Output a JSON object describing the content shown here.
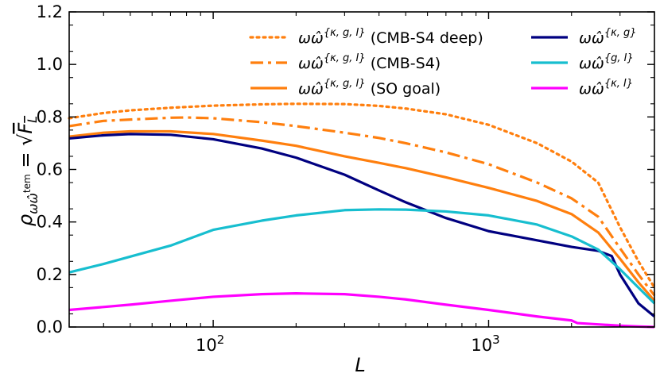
{
  "chart_data": {
    "type": "line",
    "xscale": "log",
    "xlabel": "L",
    "ylabel": "ρ_{ωω̂^tem} = √F_L",
    "xlim": [
      30,
      4000
    ],
    "ylim": [
      0.0,
      1.2
    ],
    "yticks": [
      0.0,
      0.2,
      0.4,
      0.6,
      0.8,
      1.0,
      1.2
    ],
    "ytick_labels": [
      "0.0",
      "0.2",
      "0.4",
      "0.6",
      "0.8",
      "1.0",
      "1.2"
    ],
    "xticks": [
      100,
      1000
    ],
    "xtick_labels": [
      {
        "base": "10",
        "exp": "2"
      },
      {
        "base": "10",
        "exp": "3"
      }
    ],
    "legend": "top-right, two columns",
    "series": [
      {
        "name": "ωω̂^{κ,g,I} (CMB-S4 deep)",
        "legend_main": "ωω̂",
        "legend_sup": "{κ, g, I}",
        "legend_suffix": " (CMB-S4 deep)",
        "color": "#ff7f0e",
        "style": "dotted",
        "x": [
          30,
          40,
          50,
          70,
          100,
          150,
          200,
          300,
          400,
          500,
          700,
          1000,
          1500,
          2000,
          2500,
          3000,
          3500,
          4000
        ],
        "y": [
          0.795,
          0.815,
          0.825,
          0.835,
          0.843,
          0.848,
          0.85,
          0.849,
          0.842,
          0.832,
          0.81,
          0.77,
          0.7,
          0.63,
          0.55,
          0.38,
          0.25,
          0.15
        ]
      },
      {
        "name": "ωω̂^{κ,g,I} (CMB-S4)",
        "legend_main": "ωω̂",
        "legend_sup": "{κ, g, I}",
        "legend_suffix": " (CMB-S4)",
        "color": "#ff7f0e",
        "style": "dashdot",
        "x": [
          30,
          40,
          50,
          70,
          80,
          100,
          150,
          200,
          300,
          400,
          500,
          700,
          1000,
          1500,
          2000,
          2500,
          3000,
          3500,
          4000
        ],
        "y": [
          0.765,
          0.785,
          0.79,
          0.797,
          0.798,
          0.795,
          0.78,
          0.765,
          0.74,
          0.72,
          0.7,
          0.665,
          0.62,
          0.55,
          0.49,
          0.42,
          0.3,
          0.2,
          0.12
        ]
      },
      {
        "name": "ωω̂^{κ,g,I} (SO goal)",
        "legend_main": "ωω̂",
        "legend_sup": "{κ, g, I}",
        "legend_suffix": " (SO goal)",
        "color": "#ff7f0e",
        "style": "solid",
        "x": [
          30,
          40,
          50,
          70,
          100,
          150,
          200,
          300,
          400,
          500,
          700,
          1000,
          1500,
          2000,
          2500,
          3000,
          3500,
          4000
        ],
        "y": [
          0.725,
          0.74,
          0.745,
          0.745,
          0.735,
          0.71,
          0.69,
          0.65,
          0.625,
          0.605,
          0.57,
          0.53,
          0.48,
          0.43,
          0.36,
          0.26,
          0.17,
          0.1
        ]
      },
      {
        "name": "ωω̂^{κ,g}",
        "legend_main": "ωω̂",
        "legend_sup": "{κ, g}",
        "legend_suffix": "",
        "color": "#000080",
        "style": "solid",
        "x": [
          30,
          40,
          50,
          70,
          100,
          150,
          200,
          300,
          400,
          500,
          700,
          1000,
          1500,
          2000,
          2500,
          2800,
          3000,
          3500,
          4000
        ],
        "y": [
          0.718,
          0.73,
          0.735,
          0.732,
          0.715,
          0.68,
          0.645,
          0.58,
          0.52,
          0.475,
          0.415,
          0.365,
          0.33,
          0.305,
          0.29,
          0.27,
          0.2,
          0.09,
          0.04
        ]
      },
      {
        "name": "ωω̂^{g,I}",
        "legend_main": "ωω̂",
        "legend_sup": "{g, I}",
        "legend_suffix": "",
        "color": "#17becf",
        "style": "solid",
        "x": [
          30,
          40,
          50,
          70,
          100,
          150,
          200,
          300,
          400,
          500,
          700,
          1000,
          1500,
          2000,
          2500,
          3000,
          3500,
          4000
        ],
        "y": [
          0.208,
          0.24,
          0.268,
          0.31,
          0.37,
          0.405,
          0.425,
          0.445,
          0.448,
          0.447,
          0.44,
          0.425,
          0.39,
          0.345,
          0.295,
          0.22,
          0.15,
          0.09
        ]
      },
      {
        "name": "ωω̂^{κ,I}",
        "legend_main": "ωω̂",
        "legend_sup": "{κ, I}",
        "legend_suffix": "",
        "color": "#ff00ff",
        "style": "solid",
        "x": [
          30,
          50,
          70,
          100,
          150,
          200,
          300,
          400,
          500,
          700,
          1000,
          1500,
          2000,
          2100,
          2500,
          3000,
          3500,
          4000
        ],
        "y": [
          0.065,
          0.085,
          0.1,
          0.115,
          0.125,
          0.128,
          0.125,
          0.115,
          0.105,
          0.085,
          0.065,
          0.04,
          0.025,
          0.015,
          0.01,
          0.005,
          0.002,
          0.0
        ]
      }
    ]
  }
}
